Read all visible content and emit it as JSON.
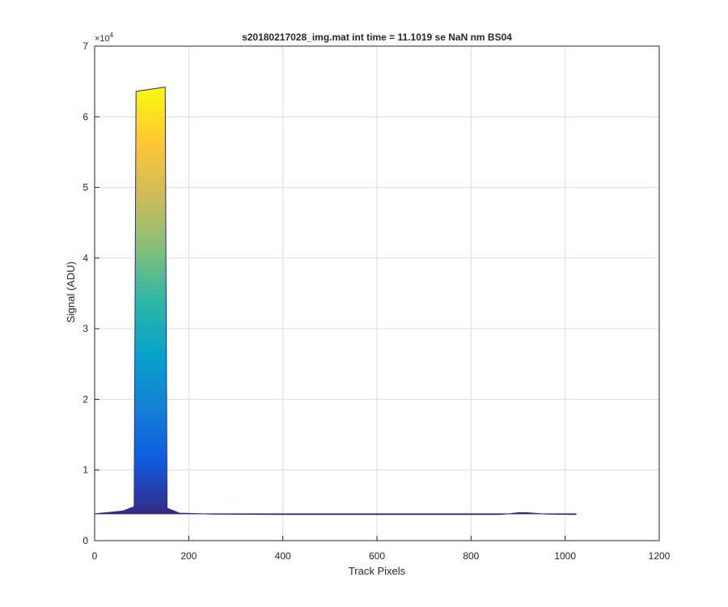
{
  "chart_data": {
    "type": "area",
    "title": "s20180217028_img.mat int time = 11.1019 se  NaN nm BS04",
    "xlabel": "Track Pixels",
    "ylabel": "Signal (ADU)",
    "exponent_label": "×10",
    "exponent_power": "4",
    "xlim": [
      0,
      1200
    ],
    "ylim": [
      0,
      70000
    ],
    "xticks": [
      0,
      200,
      400,
      600,
      800,
      1000,
      1200
    ],
    "xtick_labels": [
      "0",
      "200",
      "400",
      "600",
      "800",
      "1000",
      "1200"
    ],
    "yticks": [
      0,
      10000,
      20000,
      30000,
      40000,
      50000,
      60000,
      70000
    ],
    "ytick_labels": [
      "0",
      "1",
      "2",
      "3",
      "4",
      "5",
      "6",
      "7"
    ],
    "grid": true,
    "colormap": "parula",
    "colormap_stops": [
      "#352a87",
      "#0f5cdd",
      "#1481d6",
      "#06a4ca",
      "#2eb7a4",
      "#87bf77",
      "#d1bb59",
      "#fec832",
      "#f9fb0e"
    ],
    "baseline": 3800,
    "series": [
      {
        "x": [
          0,
          60,
          84,
          88,
          150,
          154,
          180,
          250,
          400,
          600,
          860,
          880,
          900,
          920,
          940,
          960,
          1023
        ],
        "y": [
          3800,
          4200,
          4800,
          63600,
          64200,
          4600,
          3900,
          3750,
          3700,
          3700,
          3700,
          3800,
          3950,
          3950,
          3850,
          3750,
          3700
        ]
      }
    ]
  }
}
